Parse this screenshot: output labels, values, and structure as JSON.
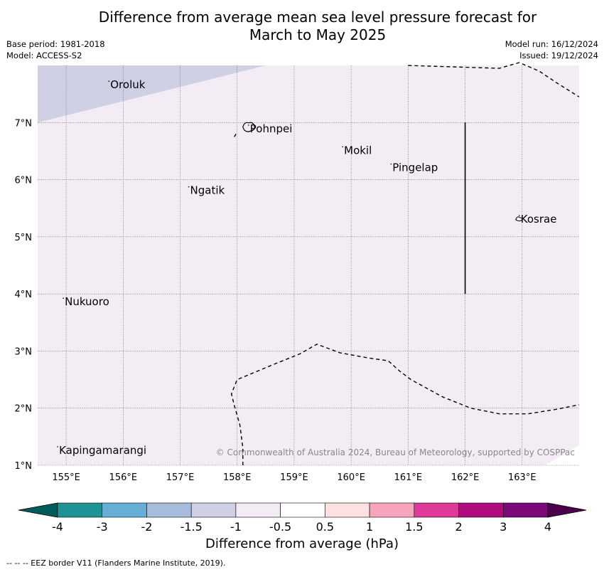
{
  "title_line1": "Difference from average mean sea level pressure forecast for",
  "title_line2": "March to May 2025",
  "base_period": "Base period: 1981-2018",
  "model": "Model: ACCESS-S2",
  "model_run": "Model run: 16/12/2024",
  "issued": "Issued: 19/12/2024",
  "map": {
    "lon_range": [
      154.5,
      164.0
    ],
    "lat_range": [
      1.0,
      8.0
    ],
    "lon_ticks": [
      "155°E",
      "156°E",
      "157°E",
      "158°E",
      "159°E",
      "160°E",
      "161°E",
      "162°E",
      "163°E"
    ],
    "lat_ticks": [
      "7°N",
      "6°N",
      "5°N",
      "4°N",
      "3°N",
      "2°N",
      "1°N"
    ],
    "background_category": "-1 to -0.5",
    "background_color": "#f3ecf5",
    "corner_category": "-1.5 to -1",
    "corner_color": "#d0d0e4",
    "places": [
      {
        "name": "Oroluk",
        "lon": 155.75,
        "lat": 7.65
      },
      {
        "name": "Pohnpei",
        "lon": 158.2,
        "lat": 6.88
      },
      {
        "name": "Mokil",
        "lon": 159.85,
        "lat": 6.5
      },
      {
        "name": "Pingelap",
        "lon": 160.7,
        "lat": 6.2
      },
      {
        "name": "Ngatik",
        "lon": 157.15,
        "lat": 5.8
      },
      {
        "name": "Kosrae",
        "lon": 162.95,
        "lat": 5.3
      },
      {
        "name": "Nukuoro",
        "lon": 154.95,
        "lat": 3.85
      },
      {
        "name": "Kapingamarangi",
        "lon": 154.85,
        "lat": 1.25
      }
    ],
    "credit": "© Commonwealth of Australia 2024, Bureau of Meteorology, supported by COSPPac"
  },
  "colorbar": {
    "title": "Difference from average (hPa)",
    "tick_labels": [
      "-4",
      "-3",
      "-2",
      "-1.5",
      "-1",
      "-0.5",
      "0.5",
      "1",
      "1.5",
      "2",
      "3",
      "4"
    ],
    "colors": [
      "#005c5a",
      "#1e9396",
      "#67aed5",
      "#a6bcdc",
      "#d0d0e4",
      "#f3ecf5",
      "#ffffff",
      "#fde0e1",
      "#f7a5bd",
      "#de3a9a",
      "#ae0d7e",
      "#7a0a7a",
      "#4a004a"
    ]
  },
  "footnote": "--  --  -- EEZ border V11 (Flanders Marine Institute, 2019)."
}
